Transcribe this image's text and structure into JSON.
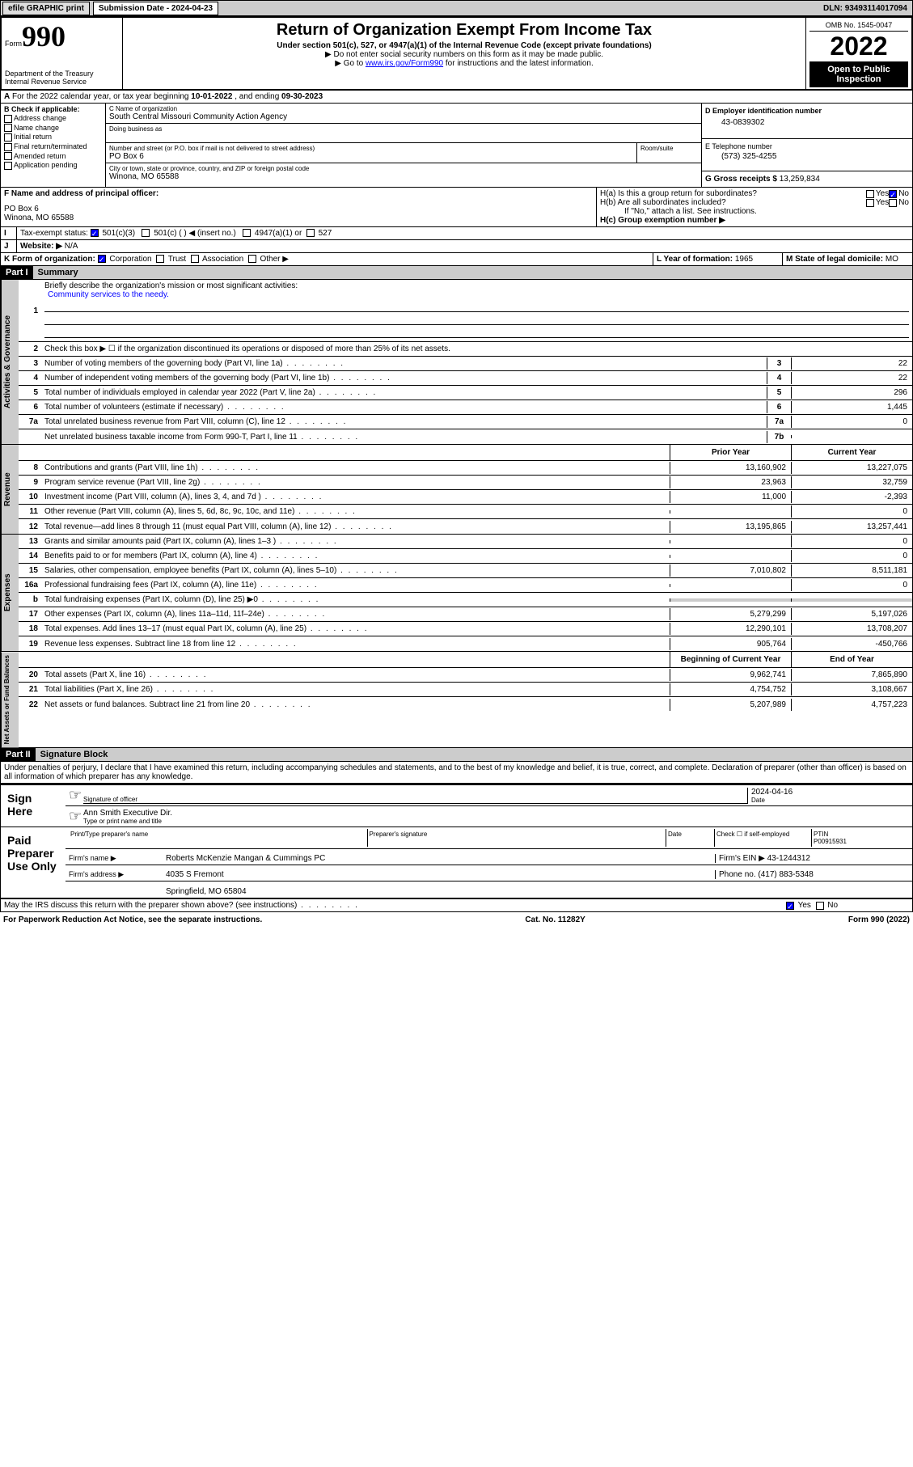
{
  "topbar": {
    "efile": "efile GRAPHIC print",
    "subdate_label": "Submission Date - ",
    "subdate": "2024-04-23",
    "dln_label": "DLN: ",
    "dln": "93493114017094"
  },
  "header": {
    "form_prefix": "Form",
    "form_num": "990",
    "dept": "Department of the Treasury",
    "irs": "Internal Revenue Service",
    "title": "Return of Organization Exempt From Income Tax",
    "subtitle": "Under section 501(c), 527, or 4947(a)(1) of the Internal Revenue Code (except private foundations)",
    "note1": "▶ Do not enter social security numbers on this form as it may be made public.",
    "note2_pre": "▶ Go to ",
    "note2_link": "www.irs.gov/Form990",
    "note2_post": " for instructions and the latest information.",
    "omb": "OMB No. 1545-0047",
    "year": "2022",
    "open": "Open to Public Inspection"
  },
  "A": {
    "text": "For the 2022 calendar year, or tax year beginning ",
    "begin": "10-01-2022",
    "mid": " , and ending ",
    "end": "09-30-2023"
  },
  "B": {
    "label": "B Check if applicable:",
    "opts": [
      "Address change",
      "Name change",
      "Initial return",
      "Final return/terminated",
      "Amended return",
      "Application pending"
    ]
  },
  "C": {
    "name_label": "C Name of organization",
    "name": "South Central Missouri Community Action Agency",
    "dba_label": "Doing business as",
    "addr_label": "Number and street (or P.O. box if mail is not delivered to street address)",
    "room_label": "Room/suite",
    "addr": "PO Box 6",
    "city_label": "City or town, state or province, country, and ZIP or foreign postal code",
    "city": "Winona, MO  65588"
  },
  "D": {
    "label": "D Employer identification number",
    "val": "43-0839302"
  },
  "E": {
    "label": "E Telephone number",
    "val": "(573) 325-4255"
  },
  "G": {
    "label": "G Gross receipts $ ",
    "val": "13,259,834"
  },
  "F": {
    "label": "F Name and address of principal officer:",
    "addr1": "PO Box 6",
    "addr2": "Winona, MO  65588"
  },
  "H": {
    "a": "H(a)  Is this a group return for subordinates?",
    "b": "H(b)  Are all subordinates included?",
    "note": "If \"No,\" attach a list. See instructions.",
    "c": "H(c)  Group exemption number ▶",
    "yes": "Yes",
    "no": "No"
  },
  "I": {
    "label": "Tax-exempt status:",
    "opts": [
      "501(c)(3)",
      "501(c) (  ) ◀ (insert no.)",
      "4947(a)(1) or",
      "527"
    ]
  },
  "J": {
    "label": "Website: ▶",
    "val": "N/A"
  },
  "K": {
    "label": "K Form of organization:",
    "opts": [
      "Corporation",
      "Trust",
      "Association",
      "Other ▶"
    ]
  },
  "L": {
    "label": "L Year of formation: ",
    "val": "1965"
  },
  "M": {
    "label": "M State of legal domicile:",
    "val": "MO"
  },
  "part1": {
    "title": "Part I",
    "name": "Summary",
    "q1": "Briefly describe the organization's mission or most significant activities:",
    "mission": "Community services to the needy.",
    "q2": "Check this box ▶ ☐  if the organization discontinued its operations or disposed of more than 25% of its net assets.",
    "lines_gov": [
      {
        "n": "3",
        "t": "Number of voting members of the governing body (Part VI, line 1a)",
        "b": "3",
        "v": "22"
      },
      {
        "n": "4",
        "t": "Number of independent voting members of the governing body (Part VI, line 1b)",
        "b": "4",
        "v": "22"
      },
      {
        "n": "5",
        "t": "Total number of individuals employed in calendar year 2022 (Part V, line 2a)",
        "b": "5",
        "v": "296"
      },
      {
        "n": "6",
        "t": "Total number of volunteers (estimate if necessary)",
        "b": "6",
        "v": "1,445"
      },
      {
        "n": "7a",
        "t": "Total unrelated business revenue from Part VIII, column (C), line 12",
        "b": "7a",
        "v": "0"
      },
      {
        "n": "",
        "t": "Net unrelated business taxable income from Form 990-T, Part I, line 11",
        "b": "7b",
        "v": ""
      }
    ],
    "col_prior": "Prior Year",
    "col_curr": "Current Year",
    "lines_rev": [
      {
        "n": "8",
        "t": "Contributions and grants (Part VIII, line 1h)",
        "p": "13,160,902",
        "c": "13,227,075"
      },
      {
        "n": "9",
        "t": "Program service revenue (Part VIII, line 2g)",
        "p": "23,963",
        "c": "32,759"
      },
      {
        "n": "10",
        "t": "Investment income (Part VIII, column (A), lines 3, 4, and 7d )",
        "p": "11,000",
        "c": "-2,393"
      },
      {
        "n": "11",
        "t": "Other revenue (Part VIII, column (A), lines 5, 6d, 8c, 9c, 10c, and 11e)",
        "p": "",
        "c": "0"
      },
      {
        "n": "12",
        "t": "Total revenue—add lines 8 through 11 (must equal Part VIII, column (A), line 12)",
        "p": "13,195,865",
        "c": "13,257,441"
      }
    ],
    "lines_exp": [
      {
        "n": "13",
        "t": "Grants and similar amounts paid (Part IX, column (A), lines 1–3 )",
        "p": "",
        "c": "0"
      },
      {
        "n": "14",
        "t": "Benefits paid to or for members (Part IX, column (A), line 4)",
        "p": "",
        "c": "0"
      },
      {
        "n": "15",
        "t": "Salaries, other compensation, employee benefits (Part IX, column (A), lines 5–10)",
        "p": "7,010,802",
        "c": "8,511,181"
      },
      {
        "n": "16a",
        "t": "Professional fundraising fees (Part IX, column (A), line 11e)",
        "p": "",
        "c": "0"
      },
      {
        "n": "b",
        "t": "Total fundraising expenses (Part IX, column (D), line 25) ▶0",
        "p": "shade",
        "c": "shade"
      },
      {
        "n": "17",
        "t": "Other expenses (Part IX, column (A), lines 11a–11d, 11f–24e)",
        "p": "5,279,299",
        "c": "5,197,026"
      },
      {
        "n": "18",
        "t": "Total expenses. Add lines 13–17 (must equal Part IX, column (A), line 25)",
        "p": "12,290,101",
        "c": "13,708,207"
      },
      {
        "n": "19",
        "t": "Revenue less expenses. Subtract line 18 from line 12",
        "p": "905,764",
        "c": "-450,766"
      }
    ],
    "col_begin": "Beginning of Current Year",
    "col_end": "End of Year",
    "lines_net": [
      {
        "n": "20",
        "t": "Total assets (Part X, line 16)",
        "p": "9,962,741",
        "c": "7,865,890"
      },
      {
        "n": "21",
        "t": "Total liabilities (Part X, line 26)",
        "p": "4,754,752",
        "c": "3,108,667"
      },
      {
        "n": "22",
        "t": "Net assets or fund balances. Subtract line 21 from line 20",
        "p": "5,207,989",
        "c": "4,757,223"
      }
    ],
    "vlabels": {
      "gov": "Activities & Governance",
      "rev": "Revenue",
      "exp": "Expenses",
      "net": "Net Assets or Fund Balances"
    }
  },
  "part2": {
    "title": "Part II",
    "name": "Signature Block",
    "decl": "Under penalties of perjury, I declare that I have examined this return, including accompanying schedules and statements, and to the best of my knowledge and belief, it is true, correct, and complete. Declaration of preparer (other than officer) is based on all information of which preparer has any knowledge.",
    "sign_here": "Sign Here",
    "sig_officer": "Signature of officer",
    "sig_date": "2024-04-16",
    "date_label": "Date",
    "officer_name": "Ann Smith  Executive Dir.",
    "type_label": "Type or print name and title",
    "paid": "Paid Preparer Use Only",
    "prep_name_label": "Print/Type preparer's name",
    "prep_sig_label": "Preparer's signature",
    "check_self": "Check ☐ if self-employed",
    "ptin_label": "PTIN",
    "ptin": "P00915931",
    "firm_name_label": "Firm's name    ▶",
    "firm_name": "Roberts McKenzie Mangan & Cummings PC",
    "firm_ein_label": "Firm's EIN ▶",
    "firm_ein": "43-1244312",
    "firm_addr_label": "Firm's address ▶",
    "firm_addr1": "4035 S Fremont",
    "firm_addr2": "Springfield, MO  65804",
    "phone_label": "Phone no. ",
    "phone": "(417) 883-5348",
    "discuss": "May the IRS discuss this return with the preparer shown above? (see instructions)"
  },
  "footer": {
    "left": "For Paperwork Reduction Act Notice, see the separate instructions.",
    "mid": "Cat. No. 11282Y",
    "right": "Form 990 (2022)"
  }
}
